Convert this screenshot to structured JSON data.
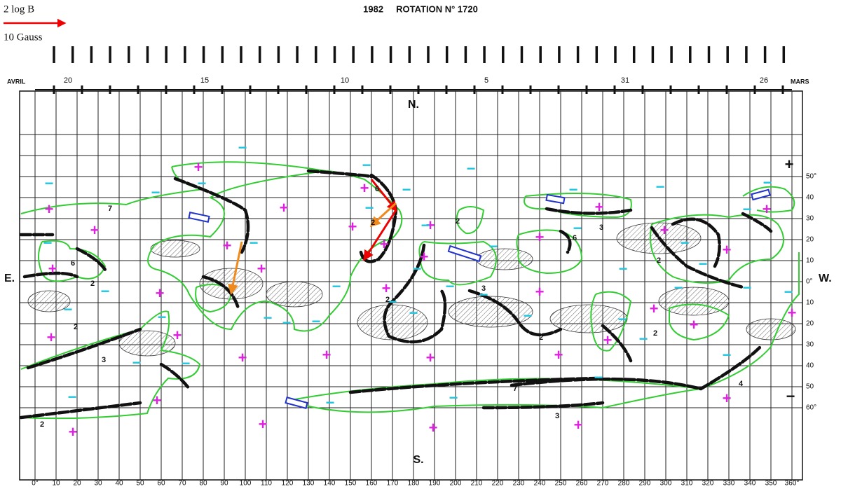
{
  "header": {
    "title": "1982     ROTATION N° 1720"
  },
  "legend": {
    "top": "2 log B",
    "bottom": "10 Gauss"
  },
  "months": {
    "left": "AVRIL",
    "right": "MARS"
  },
  "dates": [
    "20",
    "15",
    "10",
    "5",
    "31",
    "26"
  ],
  "compass": {
    "north": "N.",
    "south": "S.",
    "east": "E.",
    "west": "W."
  },
  "polarity": {
    "plus": "+",
    "minus": "−"
  },
  "longitude_ticks": [
    {
      "value": 0,
      "label": "0°"
    },
    10,
    20,
    30,
    40,
    50,
    60,
    70,
    80,
    90,
    100,
    110,
    120,
    130,
    140,
    150,
    160,
    170,
    180,
    190,
    200,
    210,
    220,
    230,
    240,
    250,
    260,
    270,
    280,
    290,
    300,
    310,
    320,
    330,
    340,
    350,
    {
      "value": 360,
      "label": "360°"
    }
  ],
  "latitude_labels": {
    "north": [
      {
        "value": 50,
        "label": "50°"
      },
      40,
      30,
      20,
      10
    ],
    "equator": {
      "value": 0,
      "label": "0°"
    },
    "south": [
      10,
      20,
      30,
      40,
      50,
      {
        "value": 60,
        "label": "60°"
      }
    ]
  },
  "line_labels": [
    "2",
    "3",
    "4",
    "6",
    "7"
  ]
}
